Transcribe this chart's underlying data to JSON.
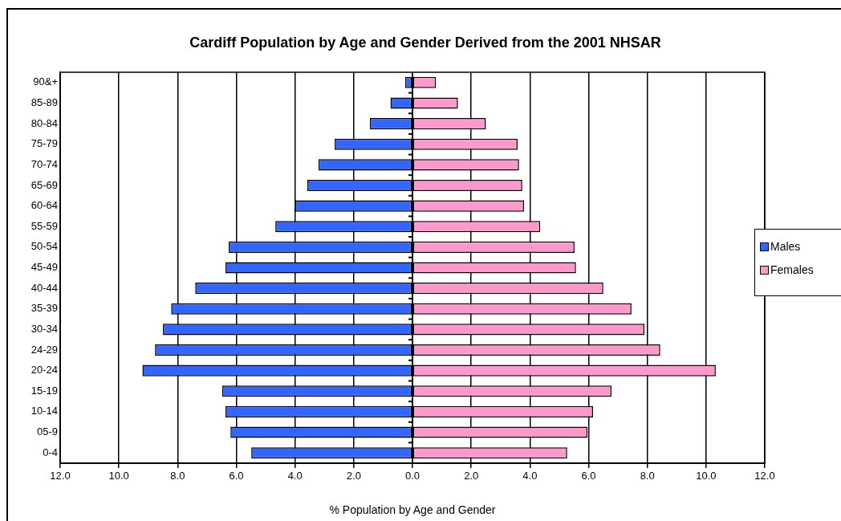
{
  "chart_data": {
    "type": "bar",
    "orientation": "horizontal",
    "title": "Cardiff Population by Age and Gender Derived from the 2001 NHSAR",
    "xlabel": "% Population by Age and Gender",
    "categories": [
      "90&+",
      "85-89",
      "80-84",
      "75-79",
      "70-74",
      "65-69",
      "60-64",
      "55-59",
      "50-54",
      "45-49",
      "40-44",
      "35-39",
      "30-34",
      "24-29",
      "20-24",
      "15-19",
      "10-14",
      "05-9",
      "0-4"
    ],
    "series": [
      {
        "name": "Males",
        "color": "#3366ff",
        "values": [
          -0.25,
          -0.75,
          -1.45,
          -2.65,
          -3.2,
          -3.58,
          -4.0,
          -4.67,
          -6.26,
          -6.37,
          -7.4,
          -8.22,
          -8.5,
          -8.77,
          -9.2,
          -6.48,
          -6.37,
          -6.2,
          -5.49
        ]
      },
      {
        "name": "Females",
        "color": "#ff99cc",
        "values": [
          0.8,
          1.55,
          2.5,
          3.58,
          3.63,
          3.74,
          3.8,
          4.35,
          5.52,
          5.57,
          6.5,
          7.46,
          7.9,
          8.44,
          10.33,
          6.78,
          6.15,
          5.96,
          5.27
        ]
      }
    ],
    "xlim": [
      -12,
      12
    ],
    "xticks": [
      {
        "value": -12,
        "label": "12.0"
      },
      {
        "value": -10,
        "label": "10.0"
      },
      {
        "value": -8,
        "label": "8.0"
      },
      {
        "value": -6,
        "label": "6.0"
      },
      {
        "value": -4,
        "label": "4.0"
      },
      {
        "value": -2,
        "label": "2.0"
      },
      {
        "value": 0,
        "label": "0.0"
      },
      {
        "value": 2,
        "label": "2.0"
      },
      {
        "value": 4,
        "label": "4.0"
      },
      {
        "value": 6,
        "label": "6.0"
      },
      {
        "value": 8,
        "label": "8.0"
      },
      {
        "value": 10,
        "label": "10.0"
      },
      {
        "value": 12,
        "label": "12.0"
      }
    ],
    "grid": "x",
    "legend": "right",
    "stacked": true
  }
}
